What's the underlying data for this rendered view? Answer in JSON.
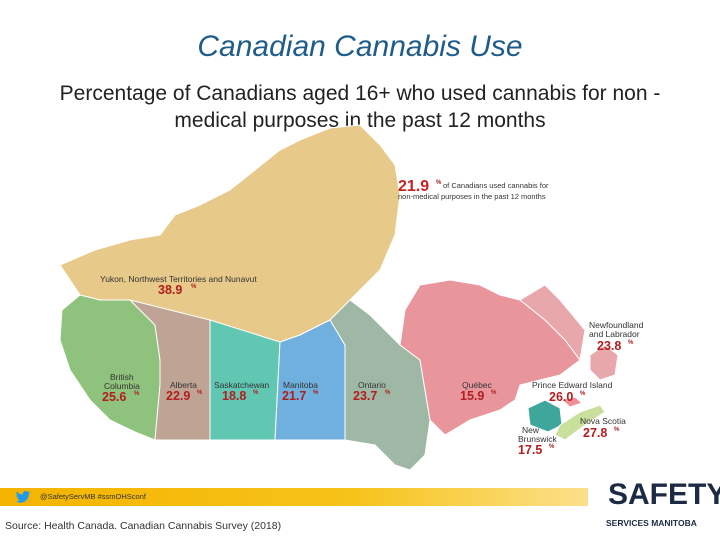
{
  "title": "Canadian Cannabis Use",
  "subtitle": "Percentage of Canadians aged 16+ who used cannabis for non -medical purposes in the past 12 months",
  "callout": {
    "value": "21.9",
    "text_line1": "of Canadians used cannabis for",
    "text_line2": "non-medical purposes in the past 12 months",
    "pct_sign": "%"
  },
  "regions": [
    {
      "id": "north",
      "label": "Yukon, Northwest Territories and Nunavut",
      "value": "38.9",
      "color": "#e7c98a"
    },
    {
      "id": "bc",
      "label1": "British",
      "label2": "Columbia",
      "value": "25.6",
      "color": "#8fc27c"
    },
    {
      "id": "ab",
      "label": "Alberta",
      "value": "22.9",
      "color": "#bfa394"
    },
    {
      "id": "sk",
      "label": "Saskatchewan",
      "value": "18.8",
      "color": "#62c7b2"
    },
    {
      "id": "mb",
      "label": "Manitoba",
      "value": "21.7",
      "color": "#6fb0de"
    },
    {
      "id": "on",
      "label": "Ontario",
      "value": "23.7",
      "color": "#9fb8a6"
    },
    {
      "id": "qc",
      "label": "Québec",
      "value": "15.9",
      "color": "#e8969c"
    },
    {
      "id": "nl",
      "label1": "Newfoundland",
      "label2": "and Labrador",
      "value": "23.8",
      "color": "#e7a7ab"
    },
    {
      "id": "pe",
      "label": "Prince Edward Island",
      "value": "26.0",
      "color": "#ef8f9a"
    },
    {
      "id": "nb",
      "label1": "New",
      "label2": "Brunswick",
      "value": "17.5",
      "color": "#3fa69b"
    },
    {
      "id": "ns",
      "label": "Nova Scotia",
      "value": "27.8",
      "color": "#c9df9c"
    }
  ],
  "pct_sign": "%",
  "footer": {
    "social": "@SafetyServMB #ssmOHSconf",
    "source": "Source: Health Canada. Canadian Cannabis Survey (2018)",
    "logo_main": "SAFETY",
    "logo_sub": "SERVICES MANITOBA"
  }
}
